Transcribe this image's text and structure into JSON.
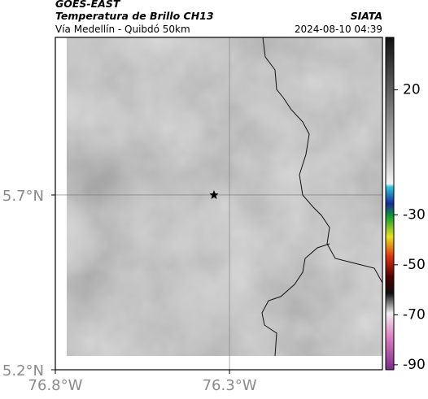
{
  "header": {
    "title": "GOES-EAST",
    "subtitle": "Temperatura de Brillo CH13",
    "route": "Vía Medellín - Quibdó 50km",
    "source": "SIATA",
    "timestamp": "2024-08-10 04:39"
  },
  "map": {
    "xlim": [
      -76.8,
      -75.861
    ],
    "ylim": [
      5.2,
      6.151
    ],
    "xticks": [
      {
        "value": -76.8,
        "label": "76.8°W"
      },
      {
        "value": -76.3,
        "label": "76.3°W"
      }
    ],
    "yticks": [
      {
        "value": 5.2,
        "label": "5.2°N"
      },
      {
        "value": 5.7,
        "label": "5.7°N"
      }
    ],
    "grid": true
  },
  "colorbar": {
    "clim": [
      -92,
      41
    ],
    "ticks": [
      20,
      -30,
      -50,
      -70,
      -90
    ]
  }
}
